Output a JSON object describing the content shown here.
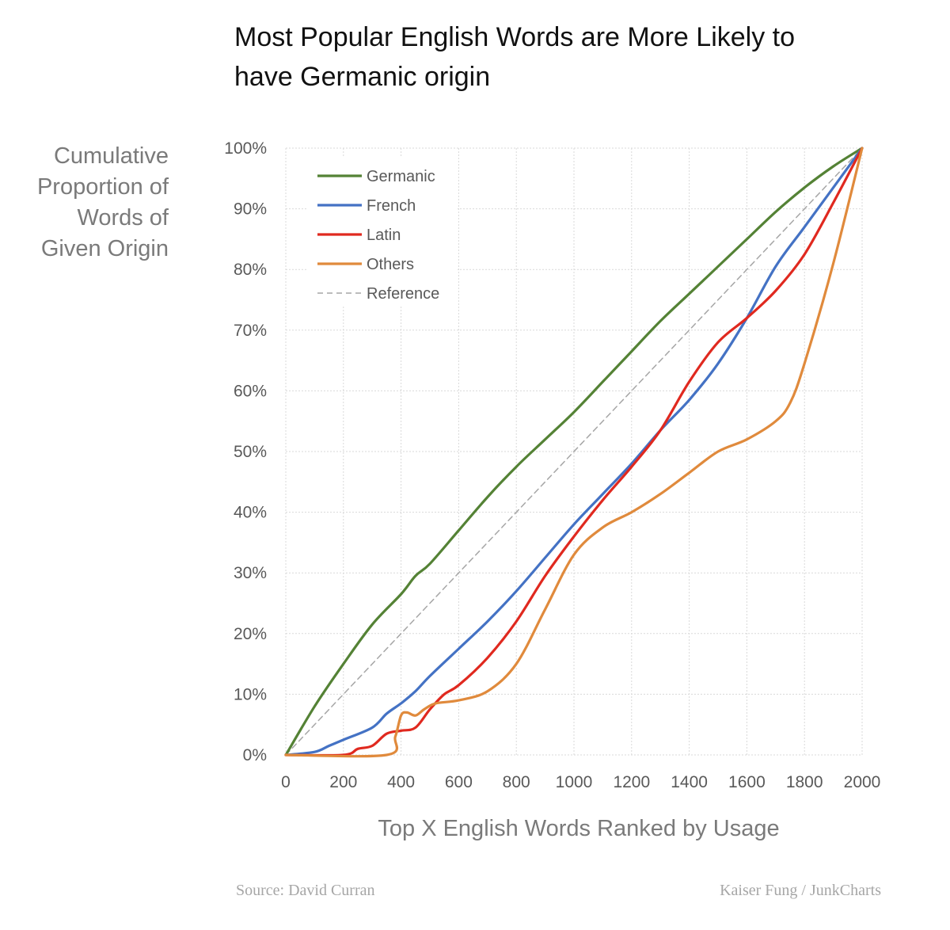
{
  "title_lines": [
    "Most Popular English Words are More Likely to",
    "have Germanic origin"
  ],
  "source": "Source: David Curran",
  "credit": "Kaiser Fung / JunkCharts",
  "chart_data": {
    "type": "line",
    "xlabel": "Top X English Words Ranked by Usage",
    "ylabel_lines": [
      "Cumulative",
      "Proportion of",
      "Words of",
      "Given Origin"
    ],
    "xlim": [
      0,
      2000
    ],
    "ylim": [
      0,
      100
    ],
    "x_ticks": [
      "0",
      "200",
      "400",
      "600",
      "800",
      "1000",
      "1200",
      "1400",
      "1600",
      "1800",
      "2000"
    ],
    "y_ticks": [
      "0%",
      "10%",
      "20%",
      "30%",
      "40%",
      "50%",
      "60%",
      "70%",
      "80%",
      "90%",
      "100%"
    ],
    "x_tick_values": [
      0,
      200,
      400,
      600,
      800,
      1000,
      1200,
      1400,
      1600,
      1800,
      2000
    ],
    "y_tick_values": [
      0,
      10,
      20,
      30,
      40,
      50,
      60,
      70,
      80,
      90,
      100
    ],
    "grid": true,
    "legend_position": "top-left",
    "series": [
      {
        "name": "Germanic",
        "color": "#548235",
        "dash": false,
        "x": [
          0,
          100,
          200,
          300,
          400,
          450,
          500,
          600,
          700,
          800,
          900,
          1000,
          1100,
          1200,
          1300,
          1400,
          1500,
          1600,
          1700,
          1800,
          1900,
          2000
        ],
        "y": [
          0,
          8,
          15,
          21.5,
          26.5,
          29.5,
          31.5,
          37,
          42.5,
          47.5,
          52,
          56.5,
          61.5,
          66.5,
          71.5,
          76,
          80.5,
          85,
          89.5,
          93.5,
          97,
          100
        ]
      },
      {
        "name": "French",
        "color": "#4472C4",
        "dash": false,
        "x": [
          0,
          100,
          150,
          200,
          300,
          350,
          400,
          450,
          500,
          600,
          700,
          800,
          900,
          1000,
          1100,
          1200,
          1300,
          1400,
          1500,
          1600,
          1700,
          1800,
          1900,
          2000
        ],
        "y": [
          0,
          0.5,
          1.5,
          2.5,
          4.5,
          6.8,
          8.5,
          10.5,
          13,
          17.5,
          22,
          27,
          32.5,
          38,
          43,
          48,
          53.5,
          58.5,
          64.5,
          72,
          80.5,
          87,
          93.5,
          100
        ]
      },
      {
        "name": "Latin",
        "color": "#E0291F",
        "dash": false,
        "x": [
          0,
          200,
          250,
          300,
          350,
          400,
          450,
          500,
          550,
          600,
          700,
          800,
          900,
          1000,
          1100,
          1200,
          1300,
          1400,
          1500,
          1600,
          1700,
          1800,
          1900,
          2000
        ],
        "y": [
          0,
          0,
          1,
          1.5,
          3.5,
          4,
          4.5,
          7.5,
          10,
          11.5,
          16,
          22,
          29.5,
          36,
          42,
          47.5,
          53.5,
          61.5,
          68,
          72,
          76.5,
          82.5,
          91,
          100
        ]
      },
      {
        "name": "Others",
        "color": "#E08A3C",
        "dash": false,
        "x": [
          0,
          350,
          380,
          400,
          420,
          450,
          480,
          520,
          600,
          700,
          800,
          900,
          1000,
          1100,
          1200,
          1300,
          1400,
          1500,
          1600,
          1700,
          1750,
          1800,
          1900,
          2000
        ],
        "y": [
          0,
          0,
          3,
          6.5,
          7,
          6.5,
          7.5,
          8.5,
          9,
          10.5,
          15,
          24,
          33,
          37.5,
          40,
          43,
          46.5,
          50,
          52,
          55,
          58,
          64.5,
          81,
          100
        ]
      },
      {
        "name": "Reference",
        "color": "#a6a6a6",
        "dash": true,
        "x": [
          0,
          2000
        ],
        "y": [
          0,
          100
        ]
      }
    ]
  }
}
